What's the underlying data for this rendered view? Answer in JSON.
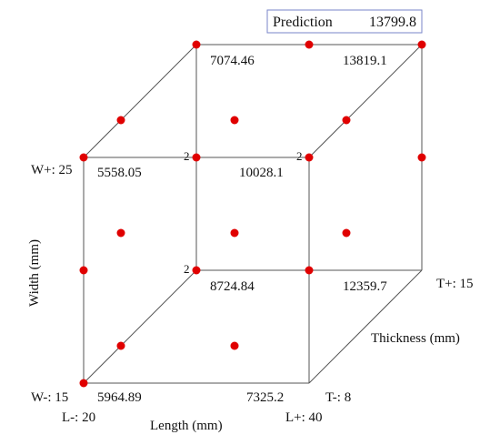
{
  "prediction": {
    "label": "Prediction",
    "value": "13799.8"
  },
  "axes": {
    "width": {
      "title": "Width (mm)",
      "low": "W-: 15",
      "high": "W+: 25"
    },
    "length": {
      "title": "Length (mm)",
      "low": "L-: 20",
      "high": "L+: 40"
    },
    "thickness": {
      "title": "Thickness (mm)",
      "low": "T-: 8",
      "high": "T+: 15"
    }
  },
  "corner_values": {
    "front_bottom_left": "5964.89",
    "front_bottom_right": "7325.2",
    "front_top_left": "5558.05",
    "front_top_right": "10028.1",
    "back_bottom_left": "8724.84",
    "back_bottom_right": "12359.7",
    "back_top_left": "7074.46",
    "back_top_right": "13819.1"
  },
  "replicate_marks": {
    "front_top_right": "2",
    "back_top_left": "2",
    "back_bottom_left": "2"
  },
  "colors": {
    "point": "#e00000",
    "edge": "#555555",
    "prediction_border": "#7a86c8"
  }
}
